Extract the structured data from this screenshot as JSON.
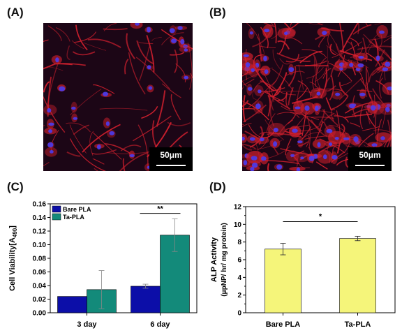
{
  "panels": {
    "a": {
      "label": "(A)",
      "scale": "50μm"
    },
    "b": {
      "label": "(B)",
      "scale": "50μm"
    },
    "c": {
      "label": "(C)"
    },
    "d": {
      "label": "(D)"
    }
  },
  "colors": {
    "bare": "#0c0ea8",
    "ta": "#138a7a",
    "alp": "#f5f57a",
    "error": "#888888",
    "micro_bg": "#1c0616",
    "actin": "#d4202e",
    "nucleus": "#4a3cf0"
  },
  "chart_data": [
    {
      "id": "c",
      "type": "bar",
      "title": "",
      "xlabel": "",
      "ylabel": "Cell Viability[A490]",
      "ylabel_main": "Cell Viability[A",
      "ylabel_sub": "490",
      "ylabel_end": "]",
      "categories": [
        "3 day",
        "6 day"
      ],
      "series": [
        {
          "name": "Bare PLA",
          "values": [
            0.024,
            0.039
          ],
          "errors": [
            0.0,
            0.003
          ]
        },
        {
          "name": "Ta-PLA",
          "values": [
            0.034,
            0.114
          ],
          "errors": [
            0.028,
            0.024
          ]
        }
      ],
      "ylim": [
        0,
        0.16
      ],
      "yticks": [
        "0.00",
        "0.02",
        "0.04",
        "0.06",
        "0.08",
        "0.10",
        "0.12",
        "0.14",
        "0.16"
      ],
      "legend_position": "top-left",
      "significance": {
        "group": "6 day",
        "label": "**"
      }
    },
    {
      "id": "d",
      "type": "bar",
      "title": "",
      "xlabel": "",
      "ylabel_line1": "ALP Activity",
      "ylabel_line2": "(μpNP/ hr/ mg protein)",
      "categories": [
        "Bare PLA",
        "Ta-PLA"
      ],
      "values": [
        7.2,
        8.4
      ],
      "errors": [
        0.65,
        0.25
      ],
      "ylim": [
        0,
        12
      ],
      "yticks": [
        "0",
        "2",
        "4",
        "6",
        "8",
        "10",
        "12"
      ],
      "significance": {
        "between": [
          "Bare PLA",
          "Ta-PLA"
        ],
        "label": "*"
      }
    }
  ]
}
